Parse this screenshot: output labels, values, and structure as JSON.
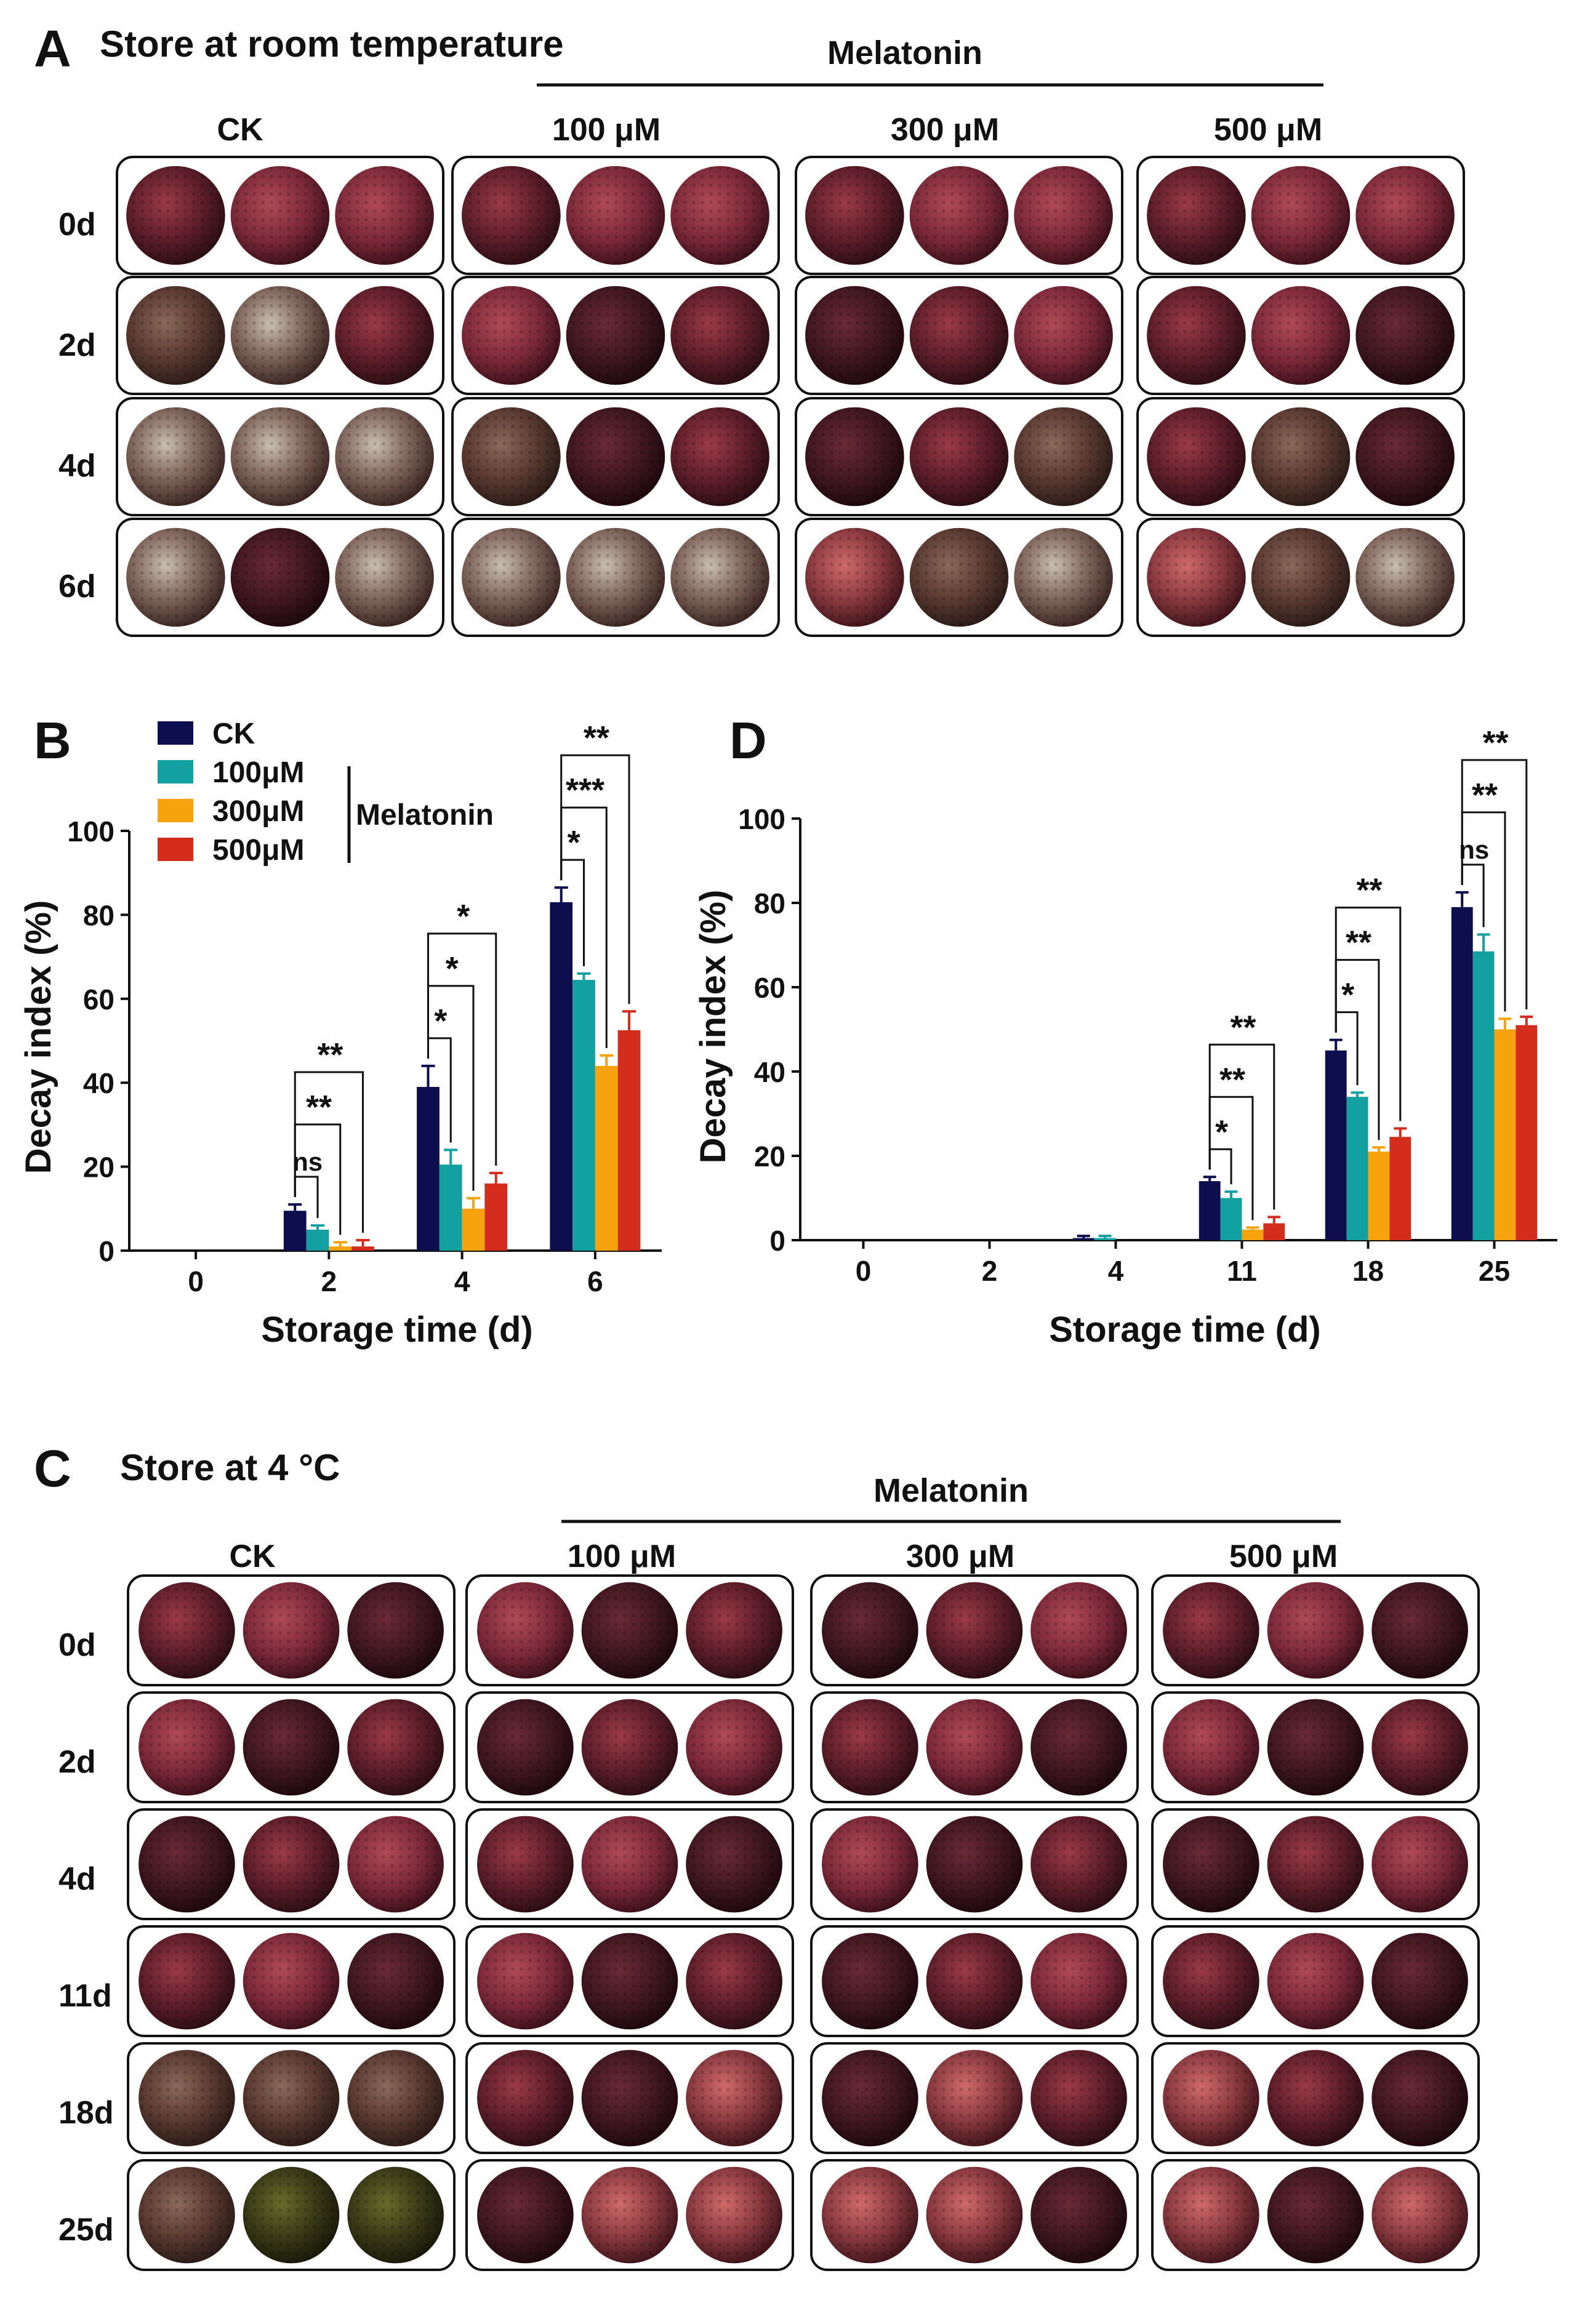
{
  "panel_a": {
    "letter": "A",
    "title": "Store at room temperature",
    "group_label": "Melatonin",
    "columns": [
      "CK",
      "100 μM",
      "300 μM",
      "500 μM"
    ],
    "rows": [
      "0d",
      "2d",
      "4d",
      "6d"
    ]
  },
  "panel_c": {
    "letter": "C",
    "title": "Store at 4 °C",
    "group_label": "Melatonin",
    "columns": [
      "CK",
      "100 μM",
      "300 μM",
      "500 μM"
    ],
    "rows": [
      "0d",
      "2d",
      "4d",
      "11d",
      "18d",
      "25d"
    ]
  },
  "colors": {
    "CK": "#0e0e4e",
    "100uM": "#13a0a0",
    "300uM": "#f7a30e",
    "500uM": "#d42d1d"
  },
  "chart_data": [
    {
      "panel": "B",
      "type": "bar",
      "xlabel": "Storage time (d)",
      "ylabel": "Decay index (%)",
      "ylim": [
        0,
        100
      ],
      "yticks": [
        0,
        20,
        40,
        60,
        80,
        100
      ],
      "categories": [
        "0",
        "2",
        "4",
        "6"
      ],
      "series": [
        {
          "name": "CK",
          "color": "#0e0e4e",
          "values": [
            0,
            9.5,
            39,
            83
          ],
          "errors": [
            0,
            1.5,
            5,
            3.5
          ]
        },
        {
          "name": "100μM",
          "color": "#13a0a0",
          "values": [
            0,
            5,
            20.5,
            64.5
          ],
          "errors": [
            0,
            1,
            3.5,
            1.5
          ]
        },
        {
          "name": "300μM",
          "color": "#f7a30e",
          "values": [
            0,
            1,
            10,
            44
          ],
          "errors": [
            0,
            1,
            2.5,
            2.5
          ]
        },
        {
          "name": "500μM",
          "color": "#d42d1d",
          "values": [
            0,
            1,
            16,
            52.5
          ],
          "errors": [
            0,
            1.5,
            2.5,
            4.5
          ]
        }
      ],
      "legend": {
        "items": [
          "CK",
          "100μM",
          "300μM",
          "500μM"
        ],
        "group_label": "Melatonin",
        "position": "top-left"
      },
      "significance": [
        {
          "category": "2",
          "vs": "100μM",
          "label": "ns"
        },
        {
          "category": "2",
          "vs": "300μM",
          "label": "**"
        },
        {
          "category": "2",
          "vs": "500μM",
          "label": "**"
        },
        {
          "category": "4",
          "vs": "100μM",
          "label": "*"
        },
        {
          "category": "4",
          "vs": "300μM",
          "label": "*"
        },
        {
          "category": "4",
          "vs": "500μM",
          "label": "*"
        },
        {
          "category": "6",
          "vs": "100μM",
          "label": "*"
        },
        {
          "category": "6",
          "vs": "300μM",
          "label": "***"
        },
        {
          "category": "6",
          "vs": "500μM",
          "label": "**"
        }
      ]
    },
    {
      "panel": "D",
      "type": "bar",
      "xlabel": "Storage time (d)",
      "ylabel": "Decay index (%)",
      "ylim": [
        0,
        100
      ],
      "yticks": [
        0,
        20,
        40,
        60,
        80,
        100
      ],
      "categories": [
        "0",
        "2",
        "4",
        "11",
        "18",
        "25"
      ],
      "series": [
        {
          "name": "CK",
          "color": "#0e0e4e",
          "values": [
            0,
            0,
            0.5,
            14,
            45,
            79
          ],
          "errors": [
            0,
            0,
            0.5,
            1,
            2.5,
            3.5
          ]
        },
        {
          "name": "100μM",
          "color": "#13a0a0",
          "values": [
            0,
            0,
            0.5,
            10,
            34,
            68.5
          ],
          "errors": [
            0,
            0,
            0.5,
            1.5,
            1,
            4
          ]
        },
        {
          "name": "300μM",
          "color": "#f7a30e",
          "values": [
            0,
            0,
            0,
            2.5,
            21,
            50
          ],
          "errors": [
            0,
            0,
            0,
            0.5,
            1,
            2.5
          ]
        },
        {
          "name": "500μM",
          "color": "#d42d1d",
          "values": [
            0,
            0,
            0,
            4,
            24.5,
            51
          ],
          "errors": [
            0,
            0,
            0,
            1.5,
            2,
            2
          ]
        }
      ],
      "significance": [
        {
          "category": "11",
          "vs": "100μM",
          "label": "*"
        },
        {
          "category": "11",
          "vs": "300μM",
          "label": "**"
        },
        {
          "category": "11",
          "vs": "500μM",
          "label": "**"
        },
        {
          "category": "18",
          "vs": "100μM",
          "label": "*"
        },
        {
          "category": "18",
          "vs": "300μM",
          "label": "**"
        },
        {
          "category": "18",
          "vs": "500μM",
          "label": "**"
        },
        {
          "category": "25",
          "vs": "100μM",
          "label": "ns"
        },
        {
          "category": "25",
          "vs": "300μM",
          "label": "**"
        },
        {
          "category": "25",
          "vs": "500μM",
          "label": "**"
        }
      ]
    }
  ]
}
